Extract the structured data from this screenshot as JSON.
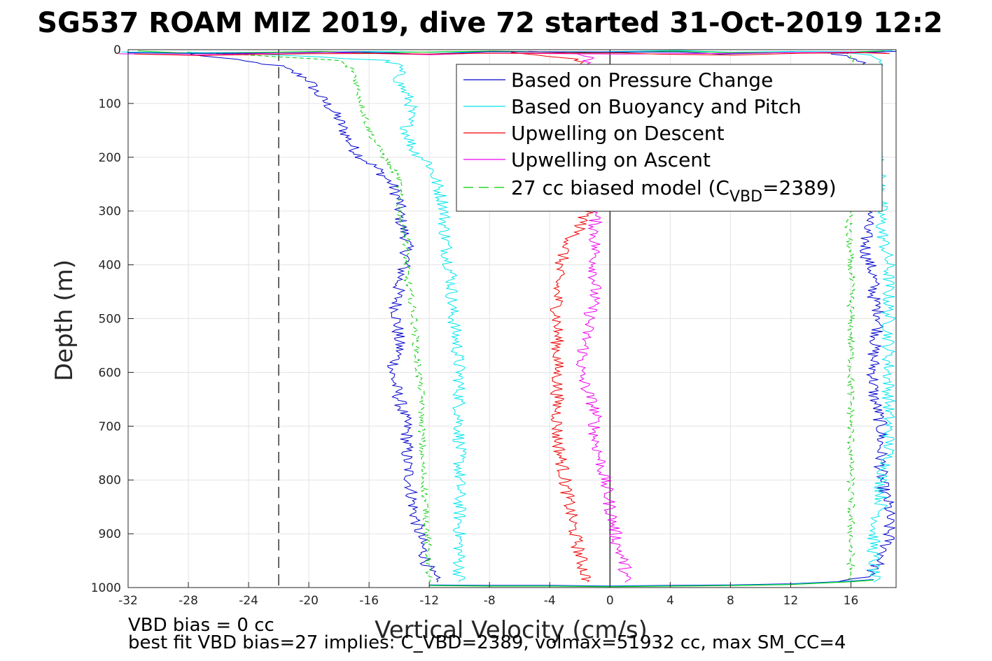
{
  "chart_data": {
    "type": "line",
    "title": "SG537 ROAM MIZ 2019, dive 72 started 31-Oct-2019 12:2",
    "xlabel": "Vertical Velocity (cm/s)",
    "ylabel": "Depth (m)",
    "xlim": [
      -32,
      19
    ],
    "ylim": [
      1000,
      0
    ],
    "y_reversed": true,
    "grid": true,
    "legend_position": "top-right",
    "x_ticks": [
      "-32",
      "-28",
      "-24",
      "-20",
      "-16",
      "-12",
      "-8",
      "-4",
      "0",
      "4",
      "8",
      "12",
      "16"
    ],
    "y_ticks": [
      "0",
      "100",
      "200",
      "300",
      "400",
      "500",
      "600",
      "700",
      "800",
      "900",
      "1000"
    ],
    "reference_lines": [
      {
        "kind": "vertical",
        "x": -22,
        "style": "dashed",
        "color": "#000000"
      },
      {
        "kind": "vertical",
        "x": 0,
        "style": "solid",
        "color": "#000000"
      }
    ],
    "series": [
      {
        "name": "Based on Pressure Change",
        "color": "#0000cc",
        "style": "solid",
        "segments": [
          {
            "x": [
              -28,
              -26,
              -22,
              -20,
              -19.5,
              -18.5,
              -18,
              -17.5,
              -17,
              -16.5,
              -15.5,
              -14.5,
              -14,
              -14,
              -13.8,
              -13.5,
              -13.5,
              -14,
              -14.2,
              -14,
              -14.5,
              -13.8,
              -13.5,
              -13.5,
              -13.2,
              -13,
              -12.5,
              -12,
              -11.5
            ],
            "y": [
              8,
              15,
              30,
              55,
              80,
              110,
              130,
              160,
              185,
              200,
              220,
              250,
              280,
              300,
              330,
              350,
              390,
              430,
              480,
              560,
              600,
              670,
              700,
              760,
              820,
              860,
              920,
              970,
              990
            ]
          },
          {
            "x": [
              15,
              16,
              17,
              17.5,
              17.5,
              17,
              17,
              17.5,
              17.5,
              18,
              17.5,
              17.5,
              18,
              18,
              18,
              18.5,
              18.5,
              18,
              17,
              15
            ],
            "y": [
              8,
              15,
              30,
              80,
              290,
              330,
              380,
              420,
              460,
              500,
              560,
              640,
              700,
              760,
              800,
              850,
              910,
              950,
              980,
              990
            ]
          }
        ]
      },
      {
        "name": "Based on Buoyancy and Pitch",
        "color": "#00e5ee",
        "style": "solid",
        "segments": [
          {
            "x": [
              -28,
              -22,
              -15,
              -14,
              -14,
              -13.2,
              -13.5,
              -13,
              -12,
              -11.5,
              -11,
              -11,
              -10.8,
              -10.5,
              -10.5,
              -10.2,
              -10,
              -10,
              -10,
              -10,
              -10,
              -10
            ],
            "y": [
              5,
              10,
              20,
              30,
              60,
              100,
              150,
              190,
              210,
              250,
              290,
              330,
              380,
              420,
              480,
              540,
              600,
              660,
              740,
              820,
              900,
              990
            ]
          },
          {
            "x": [
              16,
              17,
              18,
              17.5,
              18,
              18,
              18.5,
              18.5,
              18.5,
              18.5,
              18.5,
              18.5,
              18,
              18,
              17.5,
              17.5,
              17.5,
              17.5
            ],
            "y": [
              5,
              10,
              20,
              60,
              280,
              330,
              400,
              480,
              540,
              600,
              680,
              760,
              800,
              850,
              900,
              950,
              980,
              990
            ]
          }
        ]
      },
      {
        "name": "Upwelling on Descent",
        "color": "#ee0000",
        "style": "solid",
        "segments": [
          {
            "x": [
              -7,
              -5,
              -3,
              -2,
              -1.5,
              -1.5,
              -2,
              -3,
              -3.5,
              -3.5,
              -3.5,
              -3.5,
              -3.5,
              -3,
              -2.5,
              -2,
              -1.5
            ],
            "y": [
              5,
              10,
              15,
              20,
              30,
              300,
              330,
              370,
              420,
              500,
              580,
              640,
              720,
              800,
              880,
              940,
              990
            ]
          }
        ]
      },
      {
        "name": "Upwelling on Ascent",
        "color": "#ee00ee",
        "style": "solid",
        "segments": [
          {
            "x": [
              -5,
              -2,
              -1.5,
              -1.5,
              -1,
              -1,
              -1,
              -1,
              -1.5,
              -2,
              -1,
              -1,
              -0.5,
              0,
              0.5,
              1,
              1
            ],
            "y": [
              3,
              8,
              15,
              30,
              300,
              350,
              400,
              450,
              520,
              600,
              670,
              720,
              780,
              850,
              920,
              960,
              990
            ]
          }
        ]
      },
      {
        "name": "27 cc biased model (C",
        "name_sub": "VBD",
        "name_tail": "=2389)",
        "color": "#00cc00",
        "style": "dashed",
        "segments": [
          {
            "x": [
              -28,
              -24,
              -18,
              -17,
              -16.5,
              -16,
              -15,
              -14,
              -14,
              -13.5,
              -13.5,
              -13,
              -12.8,
              -12.5,
              -12.5,
              -12.2,
              -12
            ],
            "y": [
              5,
              10,
              20,
              40,
              100,
              150,
              200,
              240,
              300,
              350,
              420,
              500,
              580,
              650,
              760,
              860,
              990
            ]
          },
          {
            "x": [
              15.5,
              16,
              16,
              15.8,
              16,
              16,
              16,
              16,
              16,
              16,
              16,
              16
            ],
            "y": [
              5,
              15,
              290,
              330,
              420,
              500,
              600,
              700,
              800,
              880,
              950,
              990
            ]
          }
        ]
      }
    ],
    "surface_spike": {
      "x": [
        -32,
        -28,
        -20,
        -16,
        -12,
        -8,
        0,
        4,
        8,
        12,
        16,
        18.5
      ],
      "y": [
        3,
        5,
        4,
        3,
        5,
        3,
        4,
        3,
        5,
        4,
        3,
        2
      ]
    },
    "bottom_spike": {
      "x": [
        -12,
        -8,
        -4,
        0,
        4,
        8,
        12,
        16,
        17.5
      ],
      "y": [
        995,
        996,
        996,
        997,
        996,
        995,
        993,
        988,
        985
      ]
    },
    "annotations": [
      "VBD bias = 0 cc",
      "best fit VBD bias=27 implies: C_VBD=2389, volmax=51932 cc, max SM_CC=4"
    ]
  }
}
